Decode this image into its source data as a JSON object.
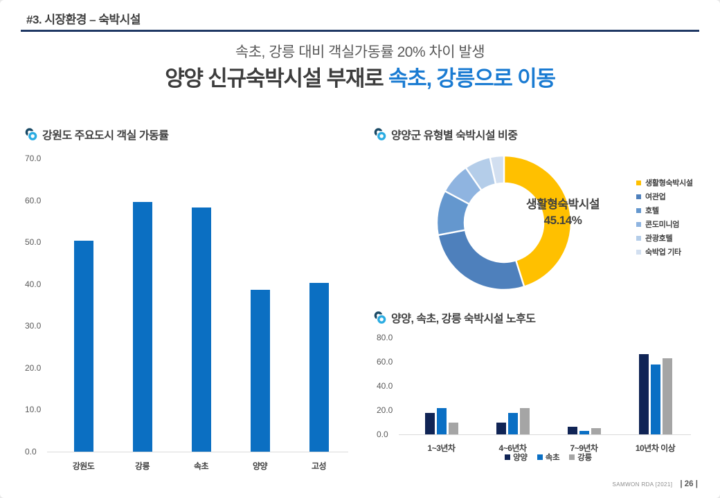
{
  "page": {
    "header": "#3. 시장환경 – 숙박시설",
    "subtitle": "속초, 강릉 대비 객실가동률 20% 차이 발생",
    "title_dark": "양양 신규숙박시설 부재로 ",
    "title_blue": "속초, 강릉으로 이동",
    "footer_source": "SAMWON RDA [2021]",
    "footer_page": "| 26 |"
  },
  "colors": {
    "header_rule": "#1f3864",
    "title_accent": "#1a7bd2",
    "bar_blue": "#0b6fc2",
    "navy": "#102455",
    "gray_bar": "#a5a5a5",
    "axis": "#d9d9d9"
  },
  "chart_data": [
    {
      "id": "occupancy",
      "type": "bar",
      "title": "강원도 주요도시 객실 가동률",
      "categories": [
        "강원도",
        "강릉",
        "속초",
        "양양",
        "고성"
      ],
      "values": [
        50.3,
        59.6,
        58.2,
        38.7,
        40.3
      ],
      "ylabel": "",
      "xlabel": "",
      "ylim": [
        0,
        70
      ],
      "ytick_step": 10,
      "grid": false,
      "bar_color": "#0b6fc2"
    },
    {
      "id": "lodging-share",
      "type": "pie",
      "title": "양양군 유형별 숙박시설 비중",
      "labels": [
        "생활형숙박시설",
        "여관업",
        "호텔",
        "콘도미니엄",
        "관광호텔",
        "숙박업 기타"
      ],
      "values": [
        45.14,
        26.9,
        10.8,
        7.5,
        6.3,
        3.36
      ],
      "colors": [
        "#ffc000",
        "#4e80bc",
        "#6497ce",
        "#8fb4e0",
        "#b4cde9",
        "#d2dff0"
      ],
      "donut": true,
      "legend_position": "right",
      "center_label_line1": "생활형숙박시설",
      "center_label_line2": "45.14%"
    },
    {
      "id": "facility-age",
      "type": "bar",
      "title": "양양, 속초, 강릉 숙박시설 노후도",
      "categories": [
        "1~3년차",
        "4~6년차",
        "7~9년차",
        "10년차 이상"
      ],
      "series": [
        {
          "name": "양양",
          "color": "#102455",
          "values": [
            17.5,
            9.5,
            6.5,
            66.3
          ]
        },
        {
          "name": "속초",
          "color": "#0a6fc4",
          "values": [
            21.5,
            17.8,
            2.6,
            57.7
          ]
        },
        {
          "name": "강릉",
          "color": "#a5a5a5",
          "values": [
            10.0,
            22.0,
            5.0,
            62.9
          ]
        }
      ],
      "ylim": [
        0,
        80
      ],
      "ytick_step": 20,
      "grid": false,
      "legend_position": "bottom"
    }
  ]
}
